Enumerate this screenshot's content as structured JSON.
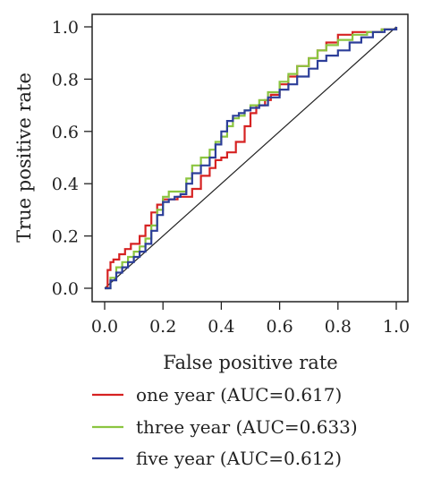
{
  "chart_data": {
    "type": "line",
    "title": "",
    "xlabel": "False positive rate",
    "ylabel": "True positive rate",
    "xlim": [
      0,
      1
    ],
    "ylim": [
      0,
      1
    ],
    "xticks": [
      "0.0",
      "0.2",
      "0.4",
      "0.6",
      "0.8",
      "1.0"
    ],
    "yticks": [
      "0.0",
      "0.2",
      "0.4",
      "0.6",
      "0.8",
      "1.0"
    ],
    "grid": false,
    "legend_placement": "bottom",
    "reference_line": {
      "x": [
        0,
        1
      ],
      "y": [
        0,
        1
      ],
      "color": "#222222"
    },
    "series": [
      {
        "name": "one year (AUC=0.617)",
        "color": "#d62222",
        "x": [
          0.0,
          0.01,
          0.02,
          0.03,
          0.05,
          0.07,
          0.09,
          0.11,
          0.12,
          0.14,
          0.16,
          0.18,
          0.2,
          0.22,
          0.25,
          0.27,
          0.3,
          0.33,
          0.36,
          0.38,
          0.4,
          0.42,
          0.45,
          0.48,
          0.5,
          0.52,
          0.55,
          0.57,
          0.6,
          0.63,
          0.66,
          0.7,
          0.73,
          0.76,
          0.8,
          0.85,
          0.9,
          0.95,
          1.0
        ],
        "y": [
          0.0,
          0.07,
          0.1,
          0.11,
          0.13,
          0.15,
          0.17,
          0.17,
          0.2,
          0.24,
          0.29,
          0.32,
          0.34,
          0.34,
          0.35,
          0.35,
          0.38,
          0.43,
          0.46,
          0.49,
          0.5,
          0.52,
          0.56,
          0.62,
          0.67,
          0.7,
          0.72,
          0.74,
          0.78,
          0.81,
          0.85,
          0.88,
          0.91,
          0.94,
          0.97,
          0.98,
          0.98,
          0.99,
          1.0
        ]
      },
      {
        "name": "three year (AUC=0.633)",
        "color": "#8bc540",
        "x": [
          0.0,
          0.02,
          0.04,
          0.06,
          0.08,
          0.1,
          0.12,
          0.14,
          0.16,
          0.18,
          0.2,
          0.22,
          0.24,
          0.26,
          0.28,
          0.3,
          0.33,
          0.36,
          0.38,
          0.4,
          0.42,
          0.44,
          0.46,
          0.48,
          0.5,
          0.53,
          0.56,
          0.6,
          0.63,
          0.66,
          0.7,
          0.73,
          0.76,
          0.8,
          0.85,
          0.9,
          0.95,
          1.0
        ],
        "y": [
          0.0,
          0.04,
          0.08,
          0.1,
          0.12,
          0.14,
          0.16,
          0.19,
          0.24,
          0.3,
          0.35,
          0.37,
          0.37,
          0.37,
          0.42,
          0.47,
          0.5,
          0.53,
          0.56,
          0.58,
          0.62,
          0.65,
          0.66,
          0.68,
          0.7,
          0.72,
          0.75,
          0.79,
          0.82,
          0.85,
          0.88,
          0.91,
          0.93,
          0.95,
          0.97,
          0.98,
          0.99,
          1.0
        ]
      },
      {
        "name": "five year (AUC=0.612)",
        "color": "#2c3e99",
        "x": [
          0.0,
          0.02,
          0.04,
          0.06,
          0.08,
          0.1,
          0.12,
          0.14,
          0.16,
          0.18,
          0.2,
          0.22,
          0.24,
          0.26,
          0.28,
          0.3,
          0.33,
          0.36,
          0.38,
          0.4,
          0.42,
          0.44,
          0.46,
          0.48,
          0.5,
          0.53,
          0.56,
          0.6,
          0.63,
          0.66,
          0.7,
          0.73,
          0.76,
          0.8,
          0.84,
          0.88,
          0.92,
          0.96,
          1.0
        ],
        "y": [
          0.0,
          0.03,
          0.06,
          0.08,
          0.1,
          0.12,
          0.14,
          0.17,
          0.22,
          0.28,
          0.33,
          0.34,
          0.35,
          0.36,
          0.4,
          0.44,
          0.47,
          0.5,
          0.55,
          0.6,
          0.64,
          0.66,
          0.67,
          0.68,
          0.69,
          0.7,
          0.73,
          0.76,
          0.78,
          0.81,
          0.84,
          0.87,
          0.89,
          0.91,
          0.94,
          0.96,
          0.98,
          0.99,
          1.0
        ]
      }
    ]
  }
}
